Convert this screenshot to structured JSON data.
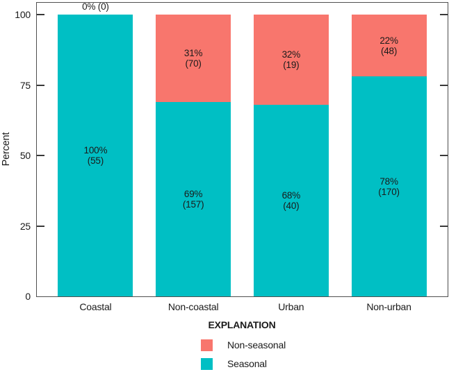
{
  "figure": {
    "ylabel": "Percent"
  },
  "chart_data": {
    "type": "bar",
    "stacked": true,
    "title": "",
    "xlabel": "",
    "ylabel": "Percent",
    "ylim": [
      0,
      100
    ],
    "yticks": [
      0,
      25,
      50,
      75,
      100
    ],
    "grid": false,
    "categories": [
      "Coastal",
      "Non-coastal",
      "Urban",
      "Non-urban"
    ],
    "series": [
      {
        "name": "Seasonal",
        "color": "#00BFC4",
        "percents": [
          100,
          69,
          68,
          78
        ],
        "counts": [
          55,
          157,
          40,
          170
        ]
      },
      {
        "name": "Non-seasonal",
        "color": "#F8766D",
        "percents": [
          0,
          31,
          32,
          22
        ],
        "counts": [
          0,
          70,
          19,
          48
        ]
      }
    ],
    "bar_labels": {
      "seasonal": [
        "100% (55)",
        "69% (157)",
        "68% (40)",
        "78% (170)"
      ],
      "non_seasonal": [
        "0% (0)",
        "31% (70)",
        "32% (19)",
        "22% (48)"
      ]
    },
    "legend": {
      "position": "bottom-center",
      "title": "EXPLANATION",
      "entries": [
        {
          "label": "Non-seasonal",
          "color": "#F8766D"
        },
        {
          "label": "Seasonal",
          "color": "#00BFC4"
        }
      ]
    },
    "colors": {
      "axis": "#4f4f4f",
      "tick": "#383838",
      "text": "#1a1a1a",
      "background": "#ffffff"
    }
  }
}
